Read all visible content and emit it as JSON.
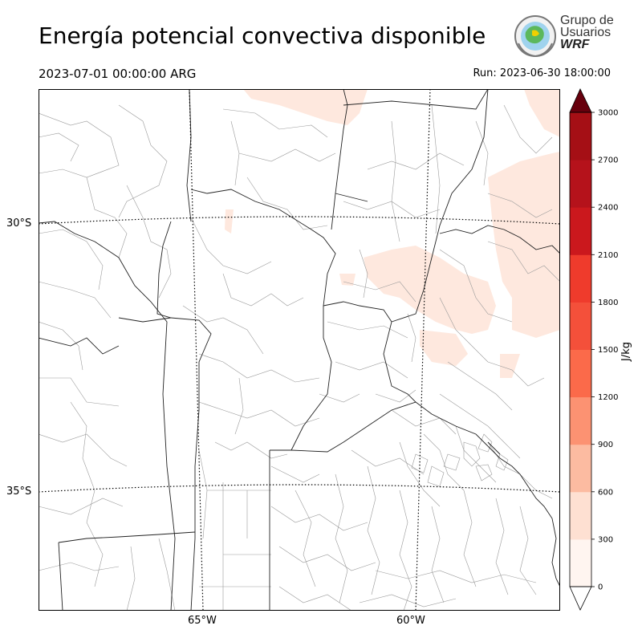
{
  "header": {
    "title": "Energía potencial convectiva disponible",
    "valid_time": "2023-07-01 00:00:00 ARG",
    "run_time": "Run: 2023-06-30 18:00:00"
  },
  "logo": {
    "line1": "Grupo de",
    "line2": "Usuarios",
    "line3": "WRF"
  },
  "map": {
    "lat_labels": [
      "30°S",
      "35°S"
    ],
    "lon_labels": [
      "65°W",
      "60°W"
    ],
    "shading_color": "#fee8de",
    "border_color": "#000000",
    "department_color": "#9a9a9a"
  },
  "colorbar": {
    "label": "J/kg",
    "ticks": [
      "0",
      "300",
      "600",
      "900",
      "1200",
      "1500",
      "1800",
      "2100",
      "2400",
      "2700",
      "3000"
    ],
    "colors": [
      "#fff5f0",
      "#fee0d2",
      "#fcbba1",
      "#fc9272",
      "#fb6a4a",
      "#f4503a",
      "#ef3b2c",
      "#cb181d",
      "#b5121b",
      "#a50f15",
      "#67000d"
    ],
    "over_color": "#67000d",
    "under_color": "#ffffff"
  }
}
